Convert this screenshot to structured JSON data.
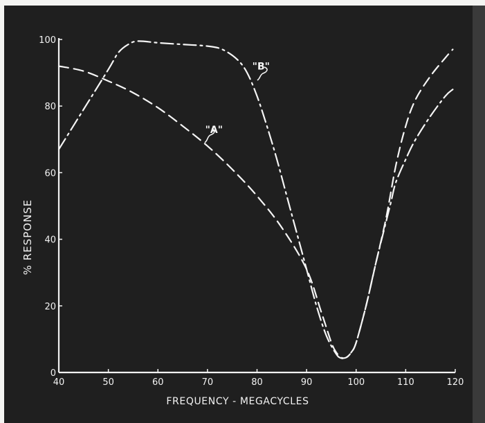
{
  "chart_data": {
    "type": "line",
    "xlabel": "FREQUENCY - MEGACYCLES",
    "ylabel": "% RESPONSE",
    "xlim": [
      40,
      120
    ],
    "ylim": [
      0,
      100
    ],
    "x_ticks": [
      "40",
      "50",
      "60",
      "70",
      "80",
      "90",
      "100",
      "110",
      "120"
    ],
    "y_ticks": [
      "0",
      "20",
      "40",
      "60",
      "80",
      "100"
    ],
    "grid": false,
    "series": [
      {
        "name": "\"A\"",
        "style": "dashed",
        "points": [
          [
            40,
            92
          ],
          [
            45,
            90.5
          ],
          [
            50,
            87.5
          ],
          [
            55,
            84
          ],
          [
            60,
            79.5
          ],
          [
            65,
            74
          ],
          [
            70,
            68
          ],
          [
            75,
            61
          ],
          [
            80,
            53
          ],
          [
            85,
            43.5
          ],
          [
            90,
            31
          ],
          [
            93,
            18
          ],
          [
            95,
            9
          ],
          [
            96,
            6
          ],
          [
            97,
            4.5
          ],
          [
            98,
            4.5
          ],
          [
            99,
            6
          ],
          [
            100,
            9
          ],
          [
            102,
            20
          ],
          [
            104,
            33
          ],
          [
            106,
            46
          ],
          [
            108,
            62
          ],
          [
            110,
            74
          ],
          [
            112,
            82
          ],
          [
            115,
            89
          ],
          [
            118,
            94.5
          ],
          [
            119.5,
            97
          ]
        ]
      },
      {
        "name": "\"B\"",
        "style": "dash-dot",
        "points": [
          [
            40,
            67
          ],
          [
            45,
            79
          ],
          [
            50,
            91
          ],
          [
            52,
            96
          ],
          [
            54,
            98.5
          ],
          [
            56,
            99.5
          ],
          [
            60,
            99
          ],
          [
            65,
            98.5
          ],
          [
            70,
            98
          ],
          [
            73,
            97
          ],
          [
            76,
            94
          ],
          [
            78,
            90
          ],
          [
            80,
            83
          ],
          [
            82,
            74
          ],
          [
            84,
            64
          ],
          [
            86,
            53
          ],
          [
            88,
            42
          ],
          [
            90,
            31
          ],
          [
            92,
            20
          ],
          [
            94,
            11
          ],
          [
            96,
            5.5
          ],
          [
            97,
            4.3
          ],
          [
            98,
            4.5
          ],
          [
            99,
            6
          ],
          [
            100,
            9
          ],
          [
            102,
            20
          ],
          [
            104,
            33
          ],
          [
            106,
            45
          ],
          [
            107,
            51
          ],
          [
            108,
            57
          ],
          [
            110,
            64
          ],
          [
            112,
            70
          ],
          [
            115,
            77
          ],
          [
            118,
            83
          ],
          [
            119.5,
            85
          ]
        ]
      }
    ],
    "annotations": [
      {
        "text": "\"A\"",
        "x": 71.5,
        "y": 73
      },
      {
        "text": "\"B\"",
        "x": 81,
        "y": 92
      }
    ]
  }
}
